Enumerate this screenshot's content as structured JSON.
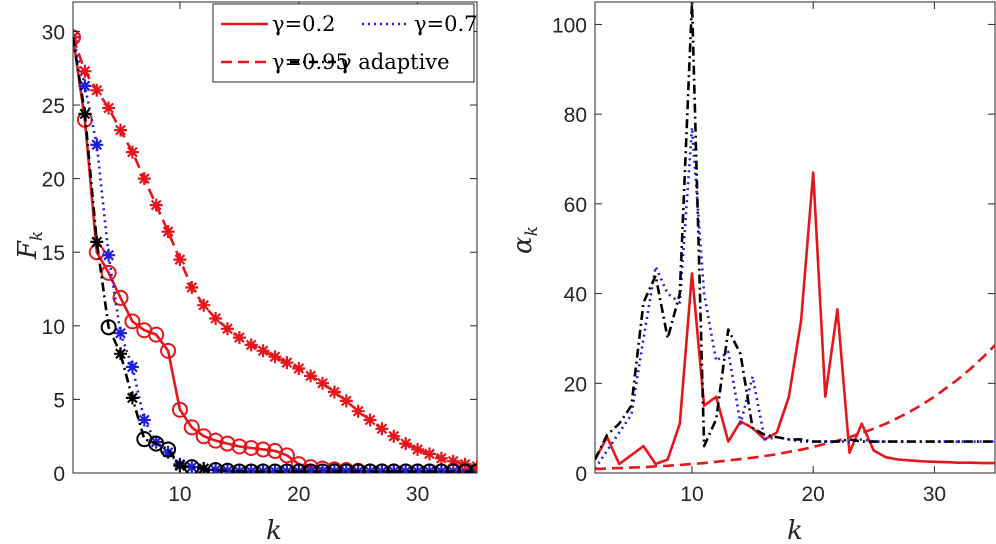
{
  "chart_data": [
    {
      "type": "line",
      "xlabel": "k",
      "ylabel_main": "F",
      "ylabel_sub": "k",
      "xlim": [
        1,
        35
      ],
      "ylim": [
        0,
        32
      ],
      "xticks": [
        10,
        20,
        30
      ],
      "yticks": [
        0,
        5,
        10,
        15,
        20,
        25,
        30
      ],
      "xtick_labels": [
        "10",
        "20",
        "30"
      ],
      "ytick_labels": [
        "0",
        "5",
        "10",
        "15",
        "20",
        "25",
        "30"
      ],
      "grid": false,
      "legend_position": "top-right",
      "series": [
        {
          "name": "γ=0.2",
          "color": "#e8161b",
          "line_style": "solid",
          "marker": "circle",
          "x": [
            1,
            2,
            3,
            4,
            5,
            6,
            7,
            8,
            9,
            10,
            11,
            12,
            13,
            14,
            15,
            16,
            17,
            18,
            19,
            20,
            21,
            22,
            23,
            24,
            25,
            26,
            27,
            28,
            29,
            30,
            31,
            32,
            33,
            34,
            35
          ],
          "y": [
            29.6,
            24.0,
            15.0,
            13.6,
            11.9,
            10.3,
            9.7,
            9.4,
            8.3,
            4.3,
            3.1,
            2.5,
            2.2,
            2.0,
            1.8,
            1.7,
            1.6,
            1.5,
            1.2,
            0.6,
            0.4,
            0.3,
            0.25,
            0.2,
            0.15,
            0.1,
            0.1,
            0.1,
            0.1,
            0.1,
            0.1,
            0.1,
            0.1,
            0.1,
            0.1
          ]
        },
        {
          "name": "γ=0.7",
          "color": "#1f1fe0",
          "line_style": "dotted",
          "marker": "asterisk",
          "x": [
            1,
            2,
            3,
            4,
            5,
            6,
            7,
            8,
            9,
            10,
            11,
            12,
            13,
            14,
            15,
            16,
            17,
            18,
            19,
            20,
            21,
            22,
            23,
            24,
            25,
            26,
            27,
            28,
            29,
            30,
            31,
            32,
            33,
            34,
            35
          ],
          "y": [
            29.6,
            26.3,
            22.3,
            14.8,
            9.5,
            7.2,
            3.6,
            2.1,
            1.4,
            0.6,
            0.4,
            0.3,
            0.2,
            0.15,
            0.1,
            0.1,
            0.1,
            0.1,
            0.1,
            0.1,
            0.1,
            0.1,
            0.1,
            0.1,
            0.1,
            0.1,
            0.1,
            0.1,
            0.1,
            0.1,
            0.1,
            0.1,
            0.1,
            0.1,
            0.1
          ]
        },
        {
          "name": "γ=0.95",
          "color": "#e8161b",
          "line_style": "dashed",
          "marker": "asterisk",
          "x": [
            1,
            2,
            3,
            4,
            5,
            6,
            7,
            8,
            9,
            10,
            11,
            12,
            13,
            14,
            15,
            16,
            17,
            18,
            19,
            20,
            21,
            22,
            23,
            24,
            25,
            26,
            27,
            28,
            29,
            30,
            31,
            32,
            33,
            34,
            35
          ],
          "y": [
            29.6,
            27.3,
            26.0,
            24.8,
            23.3,
            21.8,
            20.0,
            18.2,
            16.4,
            14.5,
            12.6,
            11.4,
            10.5,
            9.8,
            9.2,
            8.7,
            8.3,
            7.9,
            7.5,
            7.1,
            6.6,
            6.1,
            5.5,
            4.9,
            4.2,
            3.6,
            3.0,
            2.5,
            2.0,
            1.6,
            1.3,
            1.0,
            0.8,
            0.6,
            0.45
          ]
        },
        {
          "name": "γ adaptive",
          "color": "#000000",
          "line_style": "dashdot",
          "marker": "mixed",
          "x": [
            1,
            2,
            3,
            4,
            5,
            6,
            7,
            8,
            9,
            10,
            11,
            12,
            13,
            14,
            15,
            16,
            17,
            18,
            19,
            20,
            21,
            22,
            23,
            24,
            25,
            26,
            27,
            28,
            29,
            30,
            31,
            32,
            33,
            34,
            35
          ],
          "y": [
            29.6,
            24.4,
            15.7,
            9.9,
            8.1,
            5.1,
            2.3,
            2.0,
            1.6,
            0.5,
            0.4,
            0.3,
            0.2,
            0.15,
            0.1,
            0.1,
            0.1,
            0.1,
            0.1,
            0.1,
            0.1,
            0.1,
            0.1,
            0.1,
            0.1,
            0.1,
            0.1,
            0.1,
            0.1,
            0.1,
            0.1,
            0.1,
            0.1,
            0.1,
            0.1
          ],
          "markers": [
            "none",
            "asterisk",
            "asterisk",
            "circle",
            "asterisk",
            "asterisk",
            "circle",
            "circle",
            "circle",
            "asterisk",
            "circle",
            "asterisk",
            "circle",
            "circle",
            "circle",
            "circle",
            "circle",
            "circle",
            "circle",
            "circle",
            "circle",
            "circle",
            "circle",
            "circle",
            "circle",
            "circle",
            "circle",
            "circle",
            "circle",
            "circle",
            "circle",
            "circle",
            "circle",
            "circle",
            "circle"
          ]
        }
      ]
    },
    {
      "type": "line",
      "xlabel": "k",
      "ylabel_main": "α",
      "ylabel_sub": "k",
      "xlim": [
        2,
        35
      ],
      "ylim": [
        0,
        105
      ],
      "xticks": [
        10,
        20,
        30
      ],
      "yticks": [
        0,
        20,
        40,
        60,
        80,
        100
      ],
      "xtick_labels": [
        "10",
        "20",
        "30"
      ],
      "ytick_labels": [
        "0",
        "20",
        "40",
        "60",
        "80",
        "100"
      ],
      "grid": false,
      "series": [
        {
          "name": "γ=0.2",
          "color": "#e8161b",
          "line_style": "solid",
          "x": [
            2,
            3,
            4,
            5,
            6,
            7,
            8,
            9,
            10,
            11,
            12,
            13,
            14,
            15,
            16,
            17,
            18,
            19,
            20,
            21,
            22,
            23,
            24,
            25,
            26,
            27,
            28,
            29,
            30,
            31,
            32,
            33,
            34,
            35
          ],
          "y": [
            3.0,
            8.0,
            2.0,
            4.0,
            6.0,
            2.0,
            3.0,
            11.0,
            44.5,
            15.0,
            17.0,
            7.0,
            11.5,
            10.0,
            7.5,
            9.0,
            17.0,
            34.0,
            67.0,
            17.0,
            36.5,
            4.5,
            11.0,
            5.0,
            3.5,
            3.0,
            2.8,
            2.6,
            2.5,
            2.4,
            2.3,
            2.3,
            2.2,
            2.2
          ]
        },
        {
          "name": "γ=0.7",
          "color": "#1f1fe0",
          "line_style": "dotted",
          "x": [
            2,
            3,
            4,
            5,
            6,
            7,
            8,
            9,
            10,
            11,
            12,
            13,
            14,
            15,
            16,
            17,
            18,
            19,
            20,
            21,
            22,
            23,
            24,
            25,
            26,
            27,
            28,
            29,
            30,
            31,
            32,
            33,
            34,
            35
          ],
          "y": [
            1.0,
            5.0,
            9.0,
            13.0,
            30.0,
            46.0,
            40.0,
            38.0,
            77.0,
            40.0,
            25.0,
            27.0,
            11.0,
            21.5,
            7.5,
            8.0,
            7.5,
            7.0,
            7.0,
            7.0,
            7.0,
            7.0,
            7.5,
            7.0,
            7.0,
            7.0,
            7.0,
            7.0,
            7.0,
            7.0,
            7.0,
            7.0,
            7.0,
            7.0
          ]
        },
        {
          "name": "γ=0.95",
          "color": "#e8161b",
          "line_style": "dashed",
          "x": [
            2,
            3,
            4,
            5,
            6,
            7,
            8,
            9,
            10,
            11,
            12,
            13,
            14,
            15,
            16,
            17,
            18,
            19,
            20,
            21,
            22,
            23,
            24,
            25,
            26,
            27,
            28,
            29,
            30,
            31,
            32,
            33,
            34,
            35
          ],
          "y": [
            0.9,
            1.0,
            1.1,
            1.2,
            1.3,
            1.5,
            1.6,
            1.8,
            2.0,
            2.2,
            2.5,
            2.8,
            3.1,
            3.4,
            3.8,
            4.2,
            4.7,
            5.2,
            5.8,
            6.5,
            7.2,
            8.0,
            8.9,
            9.9,
            11.0,
            12.3,
            13.7,
            15.3,
            17.0,
            19.0,
            21.0,
            23.3,
            25.8,
            28.5
          ]
        },
        {
          "name": "γ adaptive",
          "color": "#000000",
          "line_style": "dashdot",
          "x": [
            2,
            3,
            4,
            5,
            6,
            7,
            8,
            9,
            10,
            11,
            12,
            13,
            14,
            15,
            16,
            17,
            18,
            19,
            20,
            21,
            22,
            23,
            24,
            25,
            26,
            27,
            28,
            29,
            30,
            31,
            32,
            33,
            34,
            35
          ],
          "y": [
            3.0,
            8.5,
            11.0,
            15.0,
            38.0,
            44.0,
            30.0,
            40.0,
            105.0,
            6.0,
            12.0,
            32.0,
            26.5,
            10.0,
            8.5,
            8.0,
            7.5,
            7.5,
            7.0,
            7.0,
            7.0,
            7.5,
            7.0,
            7.0,
            7.0,
            7.0,
            7.0,
            7.0,
            7.0,
            7.0,
            7.0,
            7.0,
            7.0,
            7.0
          ]
        }
      ]
    }
  ],
  "legend": {
    "entries": [
      {
        "label": "γ=0.2",
        "color": "#e8161b",
        "line_style": "solid"
      },
      {
        "label": "γ=0.7",
        "color": "#1f1fe0",
        "line_style": "dotted"
      },
      {
        "label": "γ=0.95",
        "color": "#e8161b",
        "line_style": "dashed"
      },
      {
        "label": "γ adaptive",
        "color": "#000000",
        "line_style": "dashdot"
      }
    ]
  }
}
